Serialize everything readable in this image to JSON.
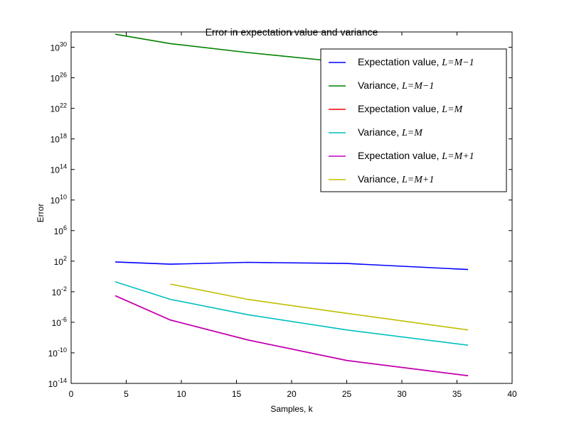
{
  "chart_data": {
    "type": "line",
    "title": "Error in expectation value and variance",
    "xlabel": "Samples, k",
    "ylabel": "Error",
    "xlim": [
      0,
      40
    ],
    "ylim": [
      1e-14,
      1e+32
    ],
    "yscale": "log",
    "grid": false,
    "legend_position": "top-right",
    "x_ticks": [
      0,
      5,
      10,
      15,
      20,
      25,
      30,
      35,
      40
    ],
    "y_tick_exponents": [
      -14,
      -10,
      -6,
      -2,
      2,
      6,
      10,
      14,
      18,
      22,
      26,
      30
    ],
    "y_tick_base": "10",
    "series": [
      {
        "name_text": "Expectation value, ",
        "name_math": "L=M−1",
        "color": "#0000ff",
        "x": [
          4,
          9,
          16,
          25,
          36
        ],
        "y": [
          80,
          40,
          70,
          50,
          8
        ]
      },
      {
        "name_text": "Variance, ",
        "name_math": "L=M−1",
        "color": "#008000",
        "x": [
          4,
          9,
          16,
          25,
          36
        ],
        "y": [
          5e+31,
          3e+30,
          2e+29,
          1e+28,
          3e+26
        ]
      },
      {
        "name_text": "Expectation value, ",
        "name_math": "L=M",
        "color": "#ff0000",
        "x": [
          4,
          9,
          16,
          25,
          36
        ],
        "y": [
          0.003,
          2e-06,
          5e-09,
          1e-11,
          1e-13
        ]
      },
      {
        "name_text": "Variance,  ",
        "name_math": "L=M",
        "color": "#00bfbf",
        "x": [
          4,
          9,
          16,
          25,
          36
        ],
        "y": [
          0.2,
          0.001,
          1e-05,
          1e-07,
          1e-09
        ]
      },
      {
        "name_text": "Expectation value, ",
        "name_math": "L=M+1",
        "color": "#bf00bf",
        "x": [
          4,
          9,
          16,
          25,
          36
        ],
        "y": [
          0.003,
          2e-06,
          5e-09,
          1e-11,
          1e-13
        ]
      },
      {
        "name_text": "Variance,  ",
        "name_math": "L=M+1",
        "color": "#bfbf00",
        "x": [
          9,
          16,
          25,
          36
        ],
        "y": [
          0.1,
          0.001,
          1.5e-05,
          1e-07
        ]
      }
    ]
  }
}
